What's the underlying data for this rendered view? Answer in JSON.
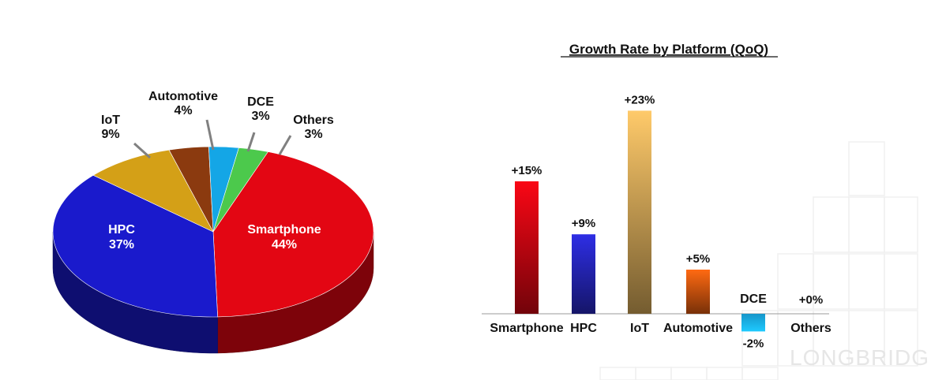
{
  "chart_data": [
    {
      "type": "pie",
      "title": "",
      "slices": [
        {
          "label": "Smartphone",
          "value": 44,
          "value_label": "44%",
          "color": "#e30613"
        },
        {
          "label": "HPC",
          "value": 37,
          "value_label": "37%",
          "color": "#1a1acc"
        },
        {
          "label": "IoT",
          "value": 9,
          "value_label": "9%",
          "color": "#d4a017"
        },
        {
          "label": "Automotive",
          "value": 4,
          "value_label": "4%",
          "color": "#8b3a0f"
        },
        {
          "label": "DCE",
          "value": 3,
          "value_label": "3%",
          "color": "#14a6e6"
        },
        {
          "label": "Others",
          "value": 3,
          "value_label": "3%",
          "color": "#4cc94c"
        }
      ]
    },
    {
      "type": "bar",
      "title": "Growth Rate by Platform (QoQ)",
      "xlabel": "",
      "ylabel": "",
      "ylim": [
        -2,
        23
      ],
      "categories": [
        "Smartphone",
        "HPC",
        "IoT",
        "Automotive",
        "DCE",
        "Others"
      ],
      "values": [
        15,
        9,
        23,
        5,
        -2,
        0
      ],
      "value_labels": [
        "+15%",
        "+9%",
        "+23%",
        "+5%",
        "-2%",
        "+0%"
      ],
      "colors": [
        "#e30613",
        "#2a2ad0",
        "#e8b860",
        "#f06010",
        "#1ab0ee",
        "#cccccc"
      ]
    }
  ],
  "watermark": "LONGBRIDGE"
}
